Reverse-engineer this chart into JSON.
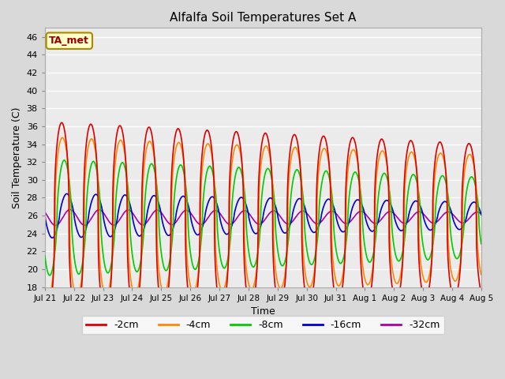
{
  "title": "Alfalfa Soil Temperatures Set A",
  "xlabel": "Time",
  "ylabel": "Soil Temperature (C)",
  "ylim": [
    18,
    47
  ],
  "yticks": [
    18,
    20,
    22,
    24,
    26,
    28,
    30,
    32,
    34,
    36,
    38,
    40,
    42,
    44,
    46
  ],
  "annotation_text": "TA_met",
  "annotation_color": "#990000",
  "annotation_bg": "#ffffcc",
  "annotation_border": "#aa8800",
  "series": {
    "-2cm": {
      "color": "#dd0000",
      "lw": 1.2
    },
    "-4cm": {
      "color": "#ff8800",
      "lw": 1.2
    },
    "-8cm": {
      "color": "#00cc00",
      "lw": 1.2
    },
    "-16cm": {
      "color": "#0000cc",
      "lw": 1.2
    },
    "-32cm": {
      "color": "#aa00aa",
      "lw": 1.2
    }
  },
  "x_start": 0,
  "x_end": 15,
  "n_points": 3000,
  "background_color": "#d9d9d9",
  "plot_bg_color": "#ebebeb",
  "grid_color": "#ffffff",
  "xtick_labels": [
    "Jul 21",
    "Jul 22",
    "Jul 23",
    "Jul 24",
    "Jul 25",
    "Jul 26",
    "Jul 27",
    "Jul 28",
    "Jul 29",
    "Jul 30",
    "Jul 31",
    "Aug 1",
    "Aug 2",
    "Aug 3",
    "Aug 4",
    "Aug 5"
  ],
  "xtick_positions": [
    0,
    1,
    2,
    3,
    4,
    5,
    6,
    7,
    8,
    9,
    10,
    11,
    12,
    13,
    14,
    15
  ]
}
